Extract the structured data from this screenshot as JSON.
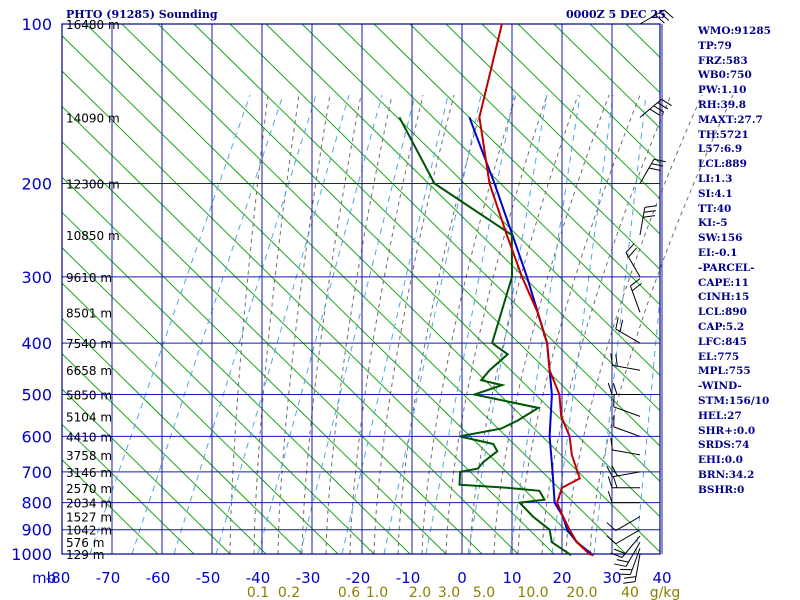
{
  "header": {
    "title": "PHTO (91285) Sounding",
    "time": "0000Z  5 DEC 25"
  },
  "stats": [
    "WMO:91285",
    "TP:79",
    "FRZ:583",
    "WB0:750",
    "PW:1.10",
    "RH:39.8",
    "MAXT:27.7",
    "TH:5721",
    "L57:6.9",
    "LCL:889",
    "LI:1.3",
    "SI:4.1",
    "TT:40",
    "KI:-5",
    "SW:156",
    "EI:-0.1",
    "-PARCEL-",
    "CAPE:11",
    "CINH:15",
    "LCL:890",
    "CAP:5.2",
    "LFC:845",
    "EL:775",
    "MPL:755",
    "-WIND-",
    "STM:156/10",
    "HEL:27",
    "SHR+:0.0",
    "SRDS:74",
    "EHI:0.0",
    "BRN:34.2",
    "BSHR:0"
  ],
  "colors": {
    "frame": "#00008b",
    "grid": "#1a1aaa",
    "dry_adiabat": "#19a619",
    "moist_adiabat": "#6e6e6e",
    "mixing_ratio": "#4fa8e6",
    "temperature": "#c00000",
    "dewpoint": "#005500",
    "parcel": "#0000cc",
    "wind": "#000000",
    "mixing_label": "#8b8000"
  },
  "chart_data": {
    "type": "skew-t",
    "title": "PHTO (91285) Sounding",
    "xlabel": "mb",
    "pressure_levels": [
      100,
      200,
      300,
      400,
      500,
      600,
      700,
      800,
      900,
      1000
    ],
    "temperature_ticks": [
      -80,
      -70,
      -60,
      -50,
      -40,
      -30,
      -20,
      -10,
      0,
      10,
      20,
      30,
      40
    ],
    "temperature_tick_labels": [
      "-80",
      "-70",
      "-60",
      "-50",
      "-40",
      "-30",
      "-20",
      "-10",
      "0",
      "10",
      "20",
      "30",
      "40"
    ],
    "height_labels": [
      {
        "p": 100,
        "label": "16480 m"
      },
      {
        "p": 150,
        "label": "14090 m"
      },
      {
        "p": 200,
        "label": "12300 m"
      },
      {
        "p": 250,
        "label": "10850 m"
      },
      {
        "p": 300,
        "label": "9610 m"
      },
      {
        "p": 350,
        "label": "8501 m"
      },
      {
        "p": 400,
        "label": "7540 m"
      },
      {
        "p": 450,
        "label": "6658 m"
      },
      {
        "p": 500,
        "label": "5850 m"
      },
      {
        "p": 550,
        "label": "5104 m"
      },
      {
        "p": 600,
        "label": "4410 m"
      },
      {
        "p": 650,
        "label": "3758 m"
      },
      {
        "p": 700,
        "label": "3146 m"
      },
      {
        "p": 750,
        "label": "2570 m"
      },
      {
        "p": 800,
        "label": "2034 m"
      },
      {
        "p": 850,
        "label": "1527 m"
      },
      {
        "p": 900,
        "label": "1042 m"
      },
      {
        "p": 950,
        "label": "576 m"
      },
      {
        "p": 1000,
        "label": "129 m"
      }
    ],
    "mixing_ratio_labels": [
      "0.1",
      "0.2",
      "0.6",
      "1.0",
      "2.0",
      "3.0",
      "5.0",
      "10.0",
      "20.0",
      "40",
      "g/kg"
    ],
    "mixing_ratio_values": [
      0.1,
      0.2,
      0.6,
      1.0,
      2.0,
      3.0,
      5.0,
      10.0,
      20.0,
      40
    ],
    "temperature_profile": [
      [
        1006,
        26.5
      ],
      [
        1000,
        25.5
      ],
      [
        950,
        21
      ],
      [
        900,
        17.5
      ],
      [
        850,
        14
      ],
      [
        800,
        10.5
      ],
      [
        750,
        9
      ],
      [
        720,
        11
      ],
      [
        700,
        9.5
      ],
      [
        650,
        5.5
      ],
      [
        600,
        2
      ],
      [
        550,
        -3
      ],
      [
        500,
        -7
      ],
      [
        450,
        -13
      ],
      [
        400,
        -18
      ],
      [
        350,
        -25
      ],
      [
        300,
        -34
      ],
      [
        250,
        -44
      ],
      [
        200,
        -56
      ],
      [
        150,
        -69
      ],
      [
        100,
        -80
      ]
    ],
    "dewpoint_profile": [
      [
        1006,
        22
      ],
      [
        1000,
        21.5
      ],
      [
        950,
        16
      ],
      [
        900,
        13.5
      ],
      [
        850,
        8
      ],
      [
        800,
        3
      ],
      [
        790,
        7.5
      ],
      [
        760,
        5
      ],
      [
        750,
        -2
      ],
      [
        740,
        -12
      ],
      [
        720,
        -13
      ],
      [
        700,
        -14
      ],
      [
        690,
        -11
      ],
      [
        670,
        -11
      ],
      [
        640,
        -10
      ],
      [
        620,
        -12
      ],
      [
        600,
        -20
      ],
      [
        580,
        -13
      ],
      [
        560,
        -11
      ],
      [
        530,
        -9
      ],
      [
        500,
        -24
      ],
      [
        480,
        -20
      ],
      [
        470,
        -25
      ],
      [
        450,
        -25
      ],
      [
        420,
        -24
      ],
      [
        400,
        -29
      ],
      [
        300,
        -36
      ],
      [
        250,
        -43
      ],
      [
        200,
        -67
      ],
      [
        150,
        -85
      ]
    ],
    "parcel_profile": [
      [
        1006,
        26.5
      ],
      [
        950,
        21
      ],
      [
        900,
        17
      ],
      [
        850,
        14
      ],
      [
        800,
        10
      ],
      [
        700,
        4.5
      ],
      [
        600,
        -2
      ],
      [
        500,
        -8.5
      ],
      [
        400,
        -18
      ],
      [
        300,
        -33
      ],
      [
        200,
        -55
      ],
      [
        150,
        -71
      ]
    ],
    "wind_profile": [
      [
        1000,
        10,
        20
      ],
      [
        975,
        20,
        15
      ],
      [
        950,
        30,
        15
      ],
      [
        925,
        40,
        15
      ],
      [
        900,
        60,
        10
      ],
      [
        850,
        60,
        10
      ],
      [
        800,
        90,
        10
      ],
      [
        750,
        90,
        15
      ],
      [
        700,
        80,
        15
      ],
      [
        650,
        100,
        10
      ],
      [
        600,
        110,
        10
      ],
      [
        550,
        110,
        10
      ],
      [
        500,
        90,
        15
      ],
      [
        450,
        100,
        15
      ],
      [
        400,
        120,
        20
      ],
      [
        350,
        160,
        15
      ],
      [
        300,
        150,
        20
      ],
      [
        250,
        190,
        30
      ],
      [
        200,
        210,
        30
      ],
      [
        150,
        230,
        40
      ],
      [
        100,
        240,
        30
      ]
    ]
  }
}
